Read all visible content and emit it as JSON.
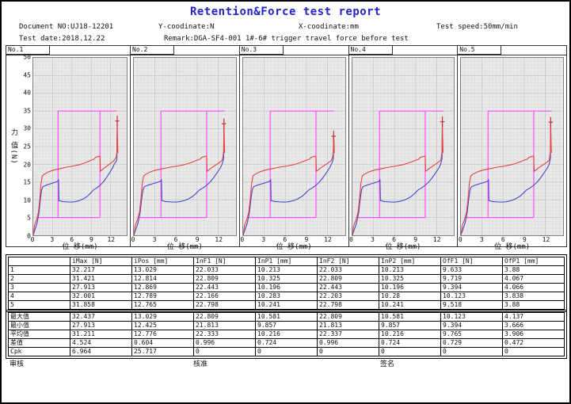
{
  "page": {
    "title": "Retention&Force test report",
    "title_color": "#2222cc",
    "header": {
      "document_no": "Document NO:UJ18-12201",
      "y_coordinate": "Y-coodinate:N",
      "x_coordinate": "X-coodinate:mm",
      "test_speed": "Test speed:50mm/min",
      "test_date": "Test date:2018.12.22",
      "remark": "Remark:DGA-SF4-001 1#-6# trigger travel force before test"
    },
    "footer": {
      "review": "审核",
      "approve": "核准",
      "sign": "签名"
    }
  },
  "chart_data": {
    "type": "line",
    "xlabel": "位 移(mm)",
    "ylabel": "力 值(N)",
    "x_ticks": [
      0,
      3,
      6,
      9,
      12
    ],
    "y_ticks": [
      0,
      5,
      10,
      15,
      20,
      25,
      30,
      35,
      40,
      45,
      50
    ],
    "xlim": [
      0,
      14.5
    ],
    "ylim": [
      0,
      50
    ],
    "grid": true,
    "legend": "none",
    "colors": {
      "push_curve": "#e84040",
      "return_curve": "#4747d1",
      "window": "#ff4cff",
      "marker": "#c03030",
      "plot_bg": "#e9e9e9",
      "grid_minor": "#dcdcdc",
      "grid_major": "#c6c6c6"
    },
    "window": {
      "left_x": 3.85,
      "right_x": 10.35,
      "bottom_y": 5,
      "top_y": 35,
      "bottom_from_x": 0.7,
      "top_to_x": 12.9
    },
    "base_red": [
      [
        0,
        0
      ],
      [
        0.2,
        2.8
      ],
      [
        0.5,
        4.3
      ],
      [
        0.8,
        6.5
      ],
      [
        1.0,
        10
      ],
      [
        1.2,
        14.5
      ],
      [
        1.4,
        16.7
      ],
      [
        1.7,
        17.2
      ],
      [
        2.4,
        17.9
      ],
      [
        3.2,
        18.4
      ],
      [
        4.2,
        18.8
      ],
      [
        5.2,
        19.2
      ],
      [
        6.2,
        19.5
      ],
      [
        7.2,
        19.9
      ],
      [
        8.0,
        20.4
      ],
      [
        8.7,
        20.9
      ],
      [
        9.0,
        21.2
      ],
      [
        9.4,
        21.4
      ],
      [
        9.7,
        22.0
      ],
      [
        10.1,
        22.2
      ],
      [
        10.35,
        22.3
      ],
      [
        10.42,
        18.0
      ],
      [
        10.9,
        18.8
      ],
      [
        11.5,
        19.6
      ],
      [
        12.1,
        20.4
      ],
      [
        12.55,
        21.1
      ]
    ],
    "base_blue": [
      [
        0,
        0
      ],
      [
        0.3,
        1.8
      ],
      [
        0.6,
        3.5
      ],
      [
        0.9,
        6.5
      ],
      [
        1.1,
        10
      ],
      [
        1.3,
        12.8
      ],
      [
        1.5,
        13.7
      ],
      [
        2.0,
        14.1
      ],
      [
        2.8,
        14.6
      ],
      [
        3.5,
        15.0
      ],
      [
        3.85,
        15.3
      ],
      [
        3.92,
        15.7
      ],
      [
        3.98,
        9.8
      ],
      [
        4.5,
        9.5
      ],
      [
        5.3,
        9.4
      ],
      [
        6.0,
        9.35
      ],
      [
        6.6,
        9.5
      ],
      [
        7.2,
        9.8
      ],
      [
        7.8,
        10.3
      ],
      [
        8.4,
        11.0
      ],
      [
        8.9,
        11.9
      ],
      [
        9.3,
        12.7
      ],
      [
        9.45,
        12.9
      ],
      [
        9.8,
        13.3
      ],
      [
        10.3,
        14.0
      ],
      [
        10.8,
        14.9
      ],
      [
        11.3,
        16.1
      ],
      [
        11.8,
        17.5
      ],
      [
        12.3,
        19.0
      ],
      [
        12.55,
        20.0
      ]
    ],
    "charts": [
      {
        "label": "No.1",
        "imax": 32.217,
        "ipos": 13.029
      },
      {
        "label": "No.2",
        "imax": 31.421,
        "ipos": 12.814
      },
      {
        "label": "No.3",
        "imax": 27.913,
        "ipos": 12.869
      },
      {
        "label": "No.4",
        "imax": 32.001,
        "ipos": 12.789
      },
      {
        "label": "No.5",
        "imax": 31.858,
        "ipos": 12.765
      }
    ]
  },
  "results_table": {
    "columns": [
      "",
      "iMax [N]",
      "iPos [mm]",
      "InF1 [N]",
      "InP1 [mm]",
      "InF2 [N]",
      "InP2 [mm]",
      "OfF1 [N]",
      "OfP1 [mm]"
    ],
    "rows": [
      [
        "1",
        "32.217",
        "13.029",
        "22.033",
        "10.213",
        "22.033",
        "10.213",
        "9.633",
        "3.88"
      ],
      [
        "2",
        "31.421",
        "12.814",
        "22.809",
        "10.325",
        "22.809",
        "10.325",
        "9.719",
        "4.067"
      ],
      [
        "3",
        "27.913",
        "12.869",
        "22.443",
        "10.196",
        "22.443",
        "10.196",
        "9.394",
        "4.066"
      ],
      [
        "4",
        "32.001",
        "12.789",
        "22.166",
        "10.283",
        "22.203",
        "10.28",
        "10.123",
        "3.838"
      ],
      [
        "5",
        "31.858",
        "12.765",
        "22.798",
        "10.241",
        "22.798",
        "10.241",
        "9.518",
        "3.88"
      ]
    ]
  },
  "stats_table": {
    "rows": [
      [
        "最大值",
        "32.437",
        "13.029",
        "22.809",
        "10.581",
        "22.809",
        "10.581",
        "10.123",
        "4.137"
      ],
      [
        "最小值",
        "27.913",
        "12.425",
        "21.813",
        "9.857",
        "21.813",
        "9.857",
        "9.394",
        "3.666"
      ],
      [
        "平均值",
        "31.211",
        "12.776",
        "22.333",
        "10.216",
        "22.337",
        "10.216",
        "9.765",
        "3.906"
      ],
      [
        "差值",
        "4.524",
        "0.604",
        "0.996",
        "0.724",
        "0.996",
        "0.724",
        "0.729",
        "0.472"
      ],
      [
        "Cpk",
        "6.964",
        "25.717",
        "0",
        "0",
        "0",
        "0",
        "0",
        "0"
      ]
    ]
  }
}
